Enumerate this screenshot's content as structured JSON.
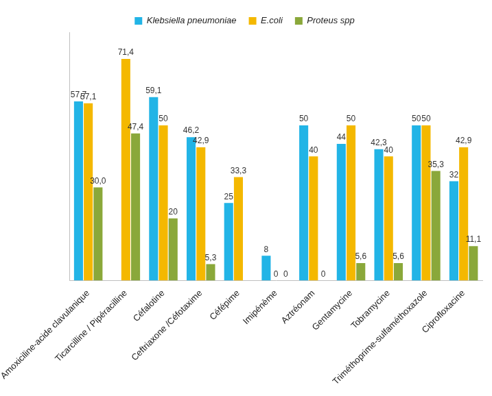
{
  "chart_data": {
    "type": "bar",
    "categories": [
      "Amoxiciline-acide clavulanique",
      "Ticarcilline / Pipéracilline",
      "Céfalotine",
      "Ceftriaxone /Céfotaxime",
      "Céfépime",
      "Imipénème",
      "Aztréonam",
      "Gentamycine",
      "Tobramycine",
      "Triméthoprime-sulfaméthoxazole",
      "Ciprofloxacine"
    ],
    "series": [
      {
        "name": "Klebsiella pneumoniae",
        "color": "#22b4e6",
        "values": [
          57.7,
          null,
          59.1,
          46.2,
          25,
          8,
          50,
          44,
          42.3,
          50,
          32
        ],
        "value_labels": [
          "57,7",
          null,
          "59,1",
          "46,2",
          "25",
          "8",
          "50",
          "44",
          "42,3",
          "50",
          "32"
        ]
      },
      {
        "name": "E.coli",
        "color": "#f4b800",
        "values": [
          57.1,
          71.4,
          50,
          42.9,
          33.3,
          0,
          40,
          50,
          40,
          50,
          42.9
        ],
        "value_labels": [
          "57,1",
          "71,4",
          "50",
          "42,9",
          "33,3",
          "0",
          "40",
          "50",
          "40",
          "50",
          "42,9"
        ]
      },
      {
        "name": "Proteus spp",
        "color": "#8aa83a",
        "values": [
          30.0,
          47.4,
          20,
          5.3,
          null,
          0,
          0,
          5.6,
          5.6,
          35.3,
          11.1
        ],
        "value_labels": [
          "30,0",
          "47,4",
          "20",
          "5,3",
          null,
          "0",
          "0",
          "5,6",
          "5,6",
          "35,3",
          "11,1"
        ]
      }
    ],
    "ylim": [
      0,
      80
    ],
    "grid": false,
    "legend": "top",
    "data_labels": true,
    "tick_labels": "x"
  }
}
